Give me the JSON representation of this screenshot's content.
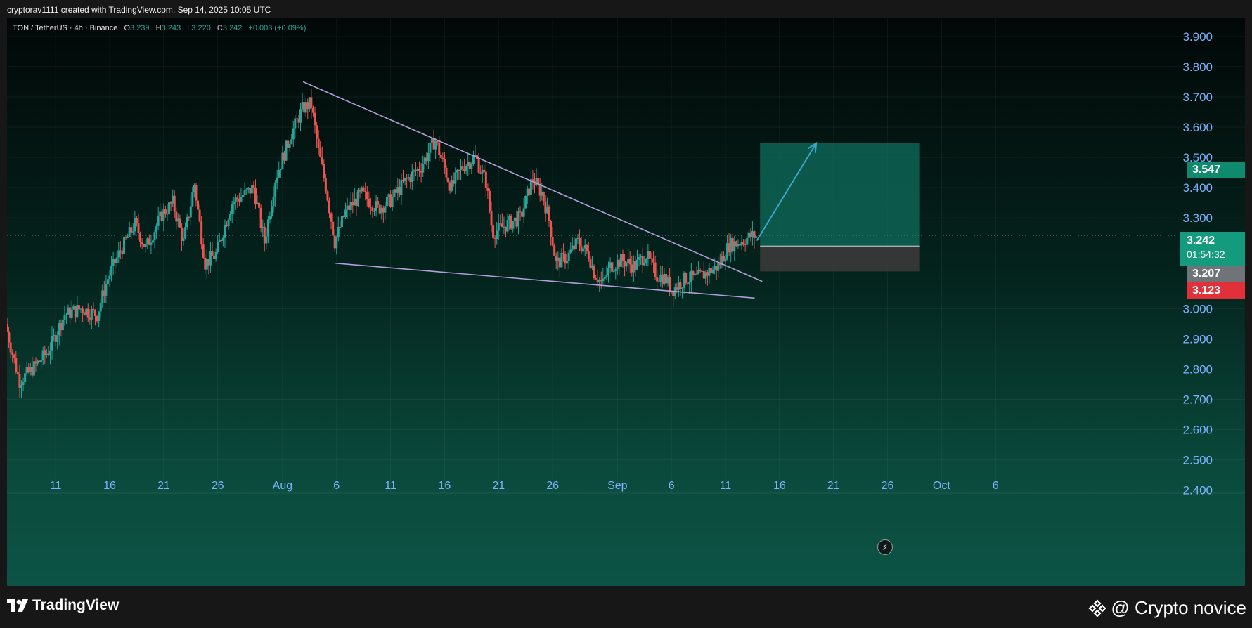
{
  "header": {
    "credit": "cryptorav1111 created with TradingView.com, Sep 14, 2025 10:05 UTC"
  },
  "legend": {
    "symbol": "TON / TetherUS · 4h · Binance",
    "open_label": "O",
    "open": "3.239",
    "high_label": "H",
    "high": "3.243",
    "low_label": "L",
    "low": "3.220",
    "close_label": "C",
    "close": "3.242",
    "change": "+0.003 (+0.09%)"
  },
  "price_tags": {
    "target": "3.547",
    "current": "3.242",
    "countdown": "01:54:32",
    "entry": "3.207",
    "stop": "3.123"
  },
  "colors": {
    "up": "#26a69a",
    "down": "#ef5350",
    "pattern_line": "#b39ddb",
    "arrow": "#38a7c9",
    "target_zone": "#0f6e5c",
    "stop_zone": "#3a3a3a",
    "axis_text": "#7ab3ff"
  },
  "footer": {
    "brand": "TradingView",
    "watermark": "@ Crypto novice",
    "logo_icon": "tradingview-logo-icon",
    "watermark_icon": "binance-diamond-icon"
  },
  "chart_data": {
    "type": "candlestick",
    "symbol": "TON / TetherUS",
    "timeframe": "4h",
    "exchange": "Binance",
    "y_ticks": [
      "3.900",
      "3.800",
      "3.700",
      "3.600",
      "3.500",
      "3.400",
      "3.300",
      "3.000",
      "2.900",
      "2.800",
      "2.700",
      "2.600",
      "2.500",
      "2.400"
    ],
    "y_tick_values": [
      3.9,
      3.8,
      3.7,
      3.6,
      3.5,
      3.4,
      3.3,
      3.0,
      2.9,
      2.8,
      2.7,
      2.6,
      2.5,
      2.4
    ],
    "ylim": [
      2.39,
      3.96
    ],
    "x_ticks": [
      "11",
      "16",
      "21",
      "26",
      "Aug",
      "6",
      "11",
      "16",
      "21",
      "26",
      "Sep",
      "6",
      "11",
      "16",
      "21",
      "26",
      "Oct",
      "6"
    ],
    "x_tick_days": [
      11,
      16,
      21,
      26,
      32,
      37,
      42,
      47,
      52,
      57,
      63,
      68,
      73,
      78,
      83,
      88,
      93,
      98
    ],
    "x_day_range": [
      6.5,
      101.5
    ],
    "day_origin_note": "",
    "price_path": [
      [
        6.5,
        2.95
      ],
      [
        7.8,
        2.76
      ],
      [
        9,
        2.8
      ],
      [
        10.5,
        2.86
      ],
      [
        12,
        2.98
      ],
      [
        13.5,
        3.0
      ],
      [
        15,
        2.98
      ],
      [
        16,
        3.1
      ],
      [
        17,
        3.18
      ],
      [
        18.5,
        3.28
      ],
      [
        19.5,
        3.2
      ],
      [
        21,
        3.31
      ],
      [
        22,
        3.35
      ],
      [
        23,
        3.22
      ],
      [
        24,
        3.41
      ],
      [
        25,
        3.15
      ],
      [
        26,
        3.18
      ],
      [
        27.5,
        3.35
      ],
      [
        29.5,
        3.4
      ],
      [
        30.5,
        3.22
      ],
      [
        31.5,
        3.43
      ],
      [
        33,
        3.58
      ],
      [
        34,
        3.66
      ],
      [
        34.8,
        3.68
      ],
      [
        35.5,
        3.52
      ],
      [
        36.2,
        3.4
      ],
      [
        37,
        3.22
      ],
      [
        38,
        3.32
      ],
      [
        39.5,
        3.38
      ],
      [
        41,
        3.33
      ],
      [
        42.2,
        3.36
      ],
      [
        43.5,
        3.42
      ],
      [
        45,
        3.47
      ],
      [
        46.3,
        3.56
      ],
      [
        47,
        3.48
      ],
      [
        47.8,
        3.4
      ],
      [
        48.8,
        3.47
      ],
      [
        50,
        3.5
      ],
      [
        51,
        3.42
      ],
      [
        51.6,
        3.25
      ],
      [
        53,
        3.28
      ],
      [
        54.2,
        3.3
      ],
      [
        55.3,
        3.43
      ],
      [
        56.2,
        3.38
      ],
      [
        56.8,
        3.3
      ],
      [
        57.5,
        3.15
      ],
      [
        58.5,
        3.17
      ],
      [
        59.5,
        3.22
      ],
      [
        60.5,
        3.18
      ],
      [
        61,
        3.12
      ],
      [
        61.8,
        3.08
      ],
      [
        62.5,
        3.14
      ],
      [
        63.5,
        3.16
      ],
      [
        64.8,
        3.14
      ],
      [
        65.8,
        3.18
      ],
      [
        66.8,
        3.11
      ],
      [
        67.6,
        3.1
      ],
      [
        68.2,
        3.06
      ],
      [
        69.5,
        3.1
      ],
      [
        70.5,
        3.1
      ],
      [
        71.5,
        3.12
      ],
      [
        72.5,
        3.14
      ],
      [
        73.5,
        3.21
      ],
      [
        74.5,
        3.22
      ],
      [
        75.5,
        3.24
      ],
      [
        75.9,
        3.24
      ]
    ],
    "annotations": {
      "falling_wedge_upper": [
        [
          33.9,
          3.75
        ],
        [
          76.4,
          3.09
        ]
      ],
      "falling_wedge_lower": [
        [
          36.9,
          3.15
        ],
        [
          75.7,
          3.035
        ]
      ],
      "arrow": {
        "from": [
          75.9,
          3.225
        ],
        "to": [
          81.4,
          3.547
        ]
      },
      "target_zone": {
        "x": [
          76.2,
          91
        ],
        "y": [
          3.207,
          3.547
        ]
      },
      "stop_zone": {
        "x": [
          76.2,
          91
        ],
        "y": [
          3.123,
          3.207
        ]
      },
      "current_price": 3.242,
      "target_price": 3.547,
      "entry_price": 3.207,
      "stop_price": 3.123
    }
  }
}
